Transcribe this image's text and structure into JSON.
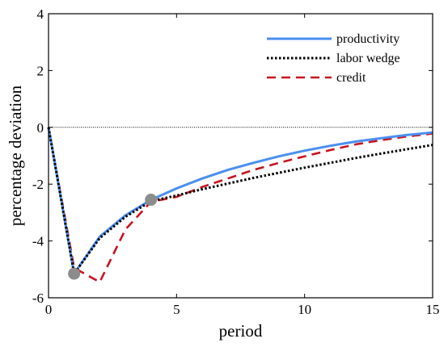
{
  "chart_data": {
    "type": "line",
    "title": "",
    "xlabel": "period",
    "ylabel": "percentage deviation",
    "xlim": [
      0,
      15
    ],
    "ylim": [
      -6,
      4
    ],
    "xticks": [
      0,
      5,
      10,
      15
    ],
    "yticks": [
      -6,
      -4,
      -2,
      0,
      2,
      4
    ],
    "xtick_labels": [
      "0",
      "5",
      "10",
      "15"
    ],
    "ytick_labels": [
      "-6",
      "-4",
      "-2",
      "0",
      "2",
      "4"
    ],
    "grid": false,
    "legend_position": "top-right",
    "reference_line": {
      "y": 0,
      "style": "dotted",
      "color": "#000000"
    },
    "series": [
      {
        "name": "productivity",
        "style": "solid",
        "color": "#4a8ff0",
        "x": [
          0,
          1,
          2,
          3,
          4,
          5,
          6,
          7,
          8,
          9,
          10,
          11,
          12,
          13,
          14,
          15
        ],
        "y": [
          0,
          -5.15,
          -3.85,
          -3.1,
          -2.55,
          -2.15,
          -1.8,
          -1.5,
          -1.25,
          -1.02,
          -0.82,
          -0.65,
          -0.5,
          -0.38,
          -0.27,
          -0.18
        ]
      },
      {
        "name": "labor wedge",
        "style": "dotted",
        "color": "#000000",
        "x": [
          0,
          1,
          2,
          3,
          4,
          5,
          6,
          7,
          8,
          9,
          10,
          11,
          12,
          13,
          14,
          15
        ],
        "y": [
          0,
          -5.15,
          -3.9,
          -3.15,
          -2.6,
          -2.4,
          -2.18,
          -1.98,
          -1.78,
          -1.6,
          -1.42,
          -1.25,
          -1.08,
          -0.92,
          -0.77,
          -0.62
        ]
      },
      {
        "name": "credit",
        "style": "dashed",
        "color": "#c8141e",
        "x": [
          0,
          1,
          2,
          3,
          4,
          5,
          6,
          7,
          8,
          9,
          10,
          11,
          12,
          13,
          14,
          15
        ],
        "y": [
          0,
          -4.95,
          -5.45,
          -3.6,
          -2.62,
          -2.45,
          -2.1,
          -1.8,
          -1.5,
          -1.25,
          -1.02,
          -0.8,
          -0.6,
          -0.45,
          -0.32,
          -0.22
        ]
      }
    ],
    "markers": [
      {
        "x": 1,
        "y": -5.15,
        "color": "#8c8c8c"
      },
      {
        "x": 4,
        "y": -2.55,
        "color": "#8c8c8c"
      }
    ]
  }
}
